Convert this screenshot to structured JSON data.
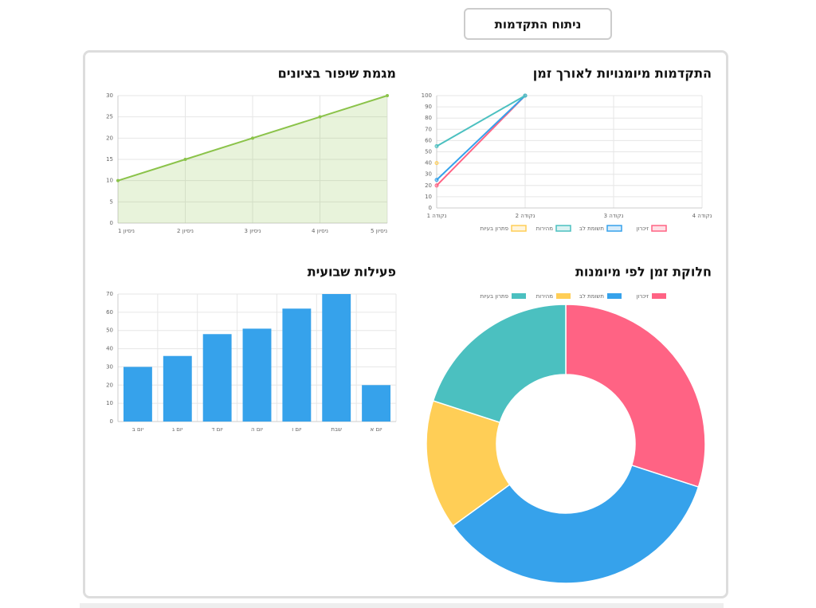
{
  "header": {
    "button": "ניתוח התקדמות"
  },
  "chart_data": [
    {
      "type": "line",
      "title": "התקדמות מיומנויות לאורך זמן",
      "categories": [
        "נקודה 1",
        "נקודה 2",
        "נקודה 3",
        "נקודה 4"
      ],
      "series": [
        {
          "name": "זיכרון",
          "color": "#ff6384",
          "values": [
            20,
            100,
            null,
            null
          ]
        },
        {
          "name": "תשומת לב",
          "color": "#36a2eb",
          "values": [
            25,
            100,
            null,
            null
          ]
        },
        {
          "name": "מהירות",
          "color": "#4bc0c0",
          "values": [
            55,
            100,
            null,
            null
          ]
        },
        {
          "name": "פתרון בעיות",
          "color": "#ffce56",
          "values": [
            40,
            null,
            null,
            null
          ]
        }
      ],
      "ylim": [
        0,
        100
      ],
      "yticks": [
        0,
        10,
        20,
        30,
        40,
        50,
        60,
        70,
        80,
        90,
        100
      ],
      "grid": true
    },
    {
      "type": "area",
      "title": "מגמת שיפור בציונים",
      "categories": [
        "ניסיון 1",
        "ניסיון 2",
        "ניסיון 3",
        "ניסיון 4",
        "ניסיון 5"
      ],
      "values": [
        10,
        15,
        20,
        25,
        30
      ],
      "color": "#8bc34a",
      "ylim": [
        0,
        30
      ],
      "yticks": [
        0,
        5,
        10,
        15,
        20,
        25,
        30
      ],
      "grid": true
    },
    {
      "type": "doughnut",
      "title": "חלוקת זמן לפי מיומנות",
      "categories": [
        "זיכרון",
        "תשומת לב",
        "מהירות",
        "פתרון בעיות"
      ],
      "values": [
        30,
        35,
        15,
        20
      ],
      "colors": [
        "#ff6384",
        "#36a2eb",
        "#ffce56",
        "#4bc0c0"
      ]
    },
    {
      "type": "bar",
      "title": "פעילות שבועית",
      "categories": [
        "יום ב",
        "יום ג",
        "יום ד",
        "יום ה",
        "יום ו",
        "שבת",
        "יום א"
      ],
      "values": [
        30,
        36,
        48,
        51,
        62,
        70,
        20
      ],
      "color": "#36a2eb",
      "ylim": [
        0,
        70
      ],
      "yticks": [
        0,
        10,
        20,
        30,
        40,
        50,
        60,
        70
      ],
      "grid": true
    }
  ]
}
